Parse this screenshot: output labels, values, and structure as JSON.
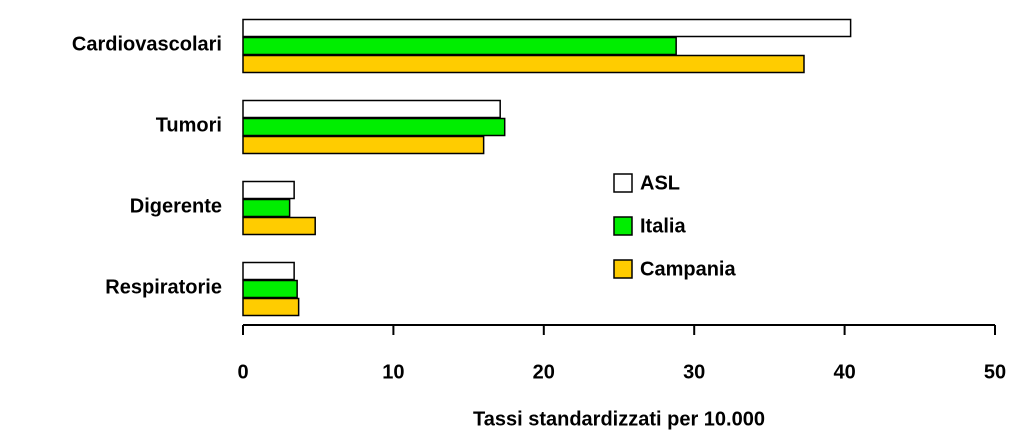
{
  "chart_data": {
    "type": "bar",
    "orientation": "horizontal",
    "xlabel": "Tassi standardizzati per 10.000",
    "categories": [
      "Cardiovascolari",
      "Tumori",
      "Digerente",
      "Respiratorie"
    ],
    "series": [
      {
        "name": "ASL",
        "color": "#ffffff",
        "values": [
          40.4,
          17.1,
          3.4,
          3.4
        ]
      },
      {
        "name": "Italia",
        "color": "#00ee00",
        "values": [
          28.8,
          17.4,
          3.1,
          3.6
        ]
      },
      {
        "name": "Campania",
        "color": "#ffcc00",
        "values": [
          37.3,
          16.0,
          4.8,
          3.7
        ]
      }
    ],
    "xlim": [
      0,
      50
    ],
    "xticks": [
      0,
      10,
      20,
      30,
      40,
      50
    ],
    "grid": false,
    "legend": "center-right"
  }
}
